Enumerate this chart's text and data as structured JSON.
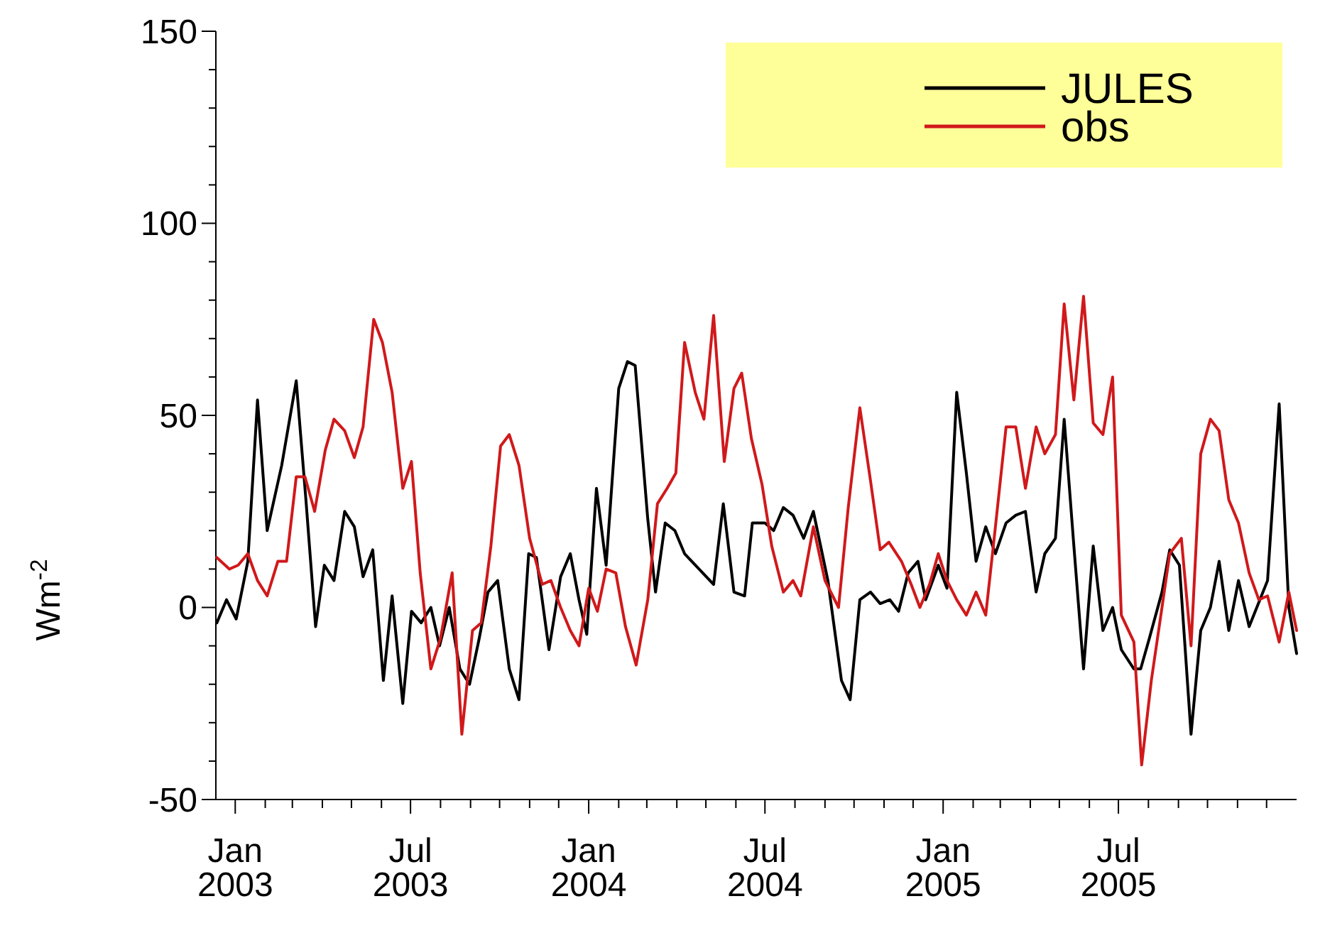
{
  "chart_data": {
    "type": "line",
    "ylabel": "Wm$^{-2}$",
    "legend": "top right",
    "marker": "none",
    "line_style": "solid",
    "xlim": [
      "2002-12-12",
      "2006-01-01"
    ],
    "xticks": [
      {
        "value": "2003-01",
        "label": "Jan\n2003"
      },
      {
        "value": "2003-02",
        "label": null
      },
      {
        "value": "2003-03",
        "label": null
      },
      {
        "value": "2003-04",
        "label": null
      },
      {
        "value": "2003-05",
        "label": null
      },
      {
        "value": "2003-06",
        "label": null
      },
      {
        "value": "2003-07",
        "label": "Jul\n2003"
      },
      {
        "value": "2003-08",
        "label": null
      },
      {
        "value": "2003-09",
        "label": null
      },
      {
        "value": "2003-10",
        "label": null
      },
      {
        "value": "2003-11",
        "label": null
      },
      {
        "value": "2003-12",
        "label": null
      },
      {
        "value": "2004-01",
        "label": "Jan\n2004"
      },
      {
        "value": "2004-02",
        "label": null
      },
      {
        "value": "2004-03",
        "label": null
      },
      {
        "value": "2004-04",
        "label": null
      },
      {
        "value": "2004-05",
        "label": null
      },
      {
        "value": "2004-06",
        "label": null
      },
      {
        "value": "2004-07",
        "label": "Jul\n2004"
      },
      {
        "value": "2004-08",
        "label": null
      },
      {
        "value": "2004-09",
        "label": null
      },
      {
        "value": "2004-10",
        "label": null
      },
      {
        "value": "2004-11",
        "label": null
      },
      {
        "value": "2004-12",
        "label": null
      },
      {
        "value": "2005-01",
        "label": "Jan\n2005"
      },
      {
        "value": "2005-02",
        "label": null
      },
      {
        "value": "2005-03",
        "label": null
      },
      {
        "value": "2005-04",
        "label": null
      },
      {
        "value": "2005-05",
        "label": null
      },
      {
        "value": "2005-06",
        "label": null
      },
      {
        "value": "2005-07",
        "label": "Jul\n2005"
      },
      {
        "value": "2005-08",
        "label": null
      },
      {
        "value": "2005-09",
        "label": null
      },
      {
        "value": "2005-10",
        "label": null
      },
      {
        "value": "2005-11",
        "label": null
      },
      {
        "value": "2005-12",
        "label": null
      }
    ],
    "ylim": [
      -50,
      150
    ],
    "yticks": [
      -50,
      {
        "value": -40,
        "label": null
      },
      {
        "value": -30,
        "label": null
      },
      {
        "value": -20,
        "label": null
      },
      {
        "value": -10,
        "label": null
      },
      0,
      {
        "value": 10,
        "label": null
      },
      {
        "value": 20,
        "label": null
      },
      {
        "value": 30,
        "label": null
      },
      {
        "value": 40,
        "label": null
      },
      50,
      {
        "value": 60,
        "label": null
      },
      {
        "value": 70,
        "label": null
      },
      {
        "value": 80,
        "label": null
      },
      {
        "value": 90,
        "label": null
      },
      100,
      {
        "value": 110,
        "label": null
      },
      {
        "value": 120,
        "label": null
      },
      {
        "value": 130,
        "label": null
      },
      {
        "value": 140,
        "label": null
      },
      150
    ],
    "series": [
      {
        "name": "JULES",
        "color": "#000000",
        "x": [
          "2002-12-13",
          "2002-12-23",
          "2003-01-02",
          "2003-01-14",
          "2003-01-24",
          "2003-02-03",
          "2003-02-18",
          "2003-03-05",
          "2003-03-15",
          "2003-03-25",
          "2003-04-03",
          "2003-04-13",
          "2003-04-24",
          "2003-05-04",
          "2003-05-13",
          "2003-05-23",
          "2003-06-03",
          "2003-06-12",
          "2003-06-23",
          "2003-07-02",
          "2003-07-12",
          "2003-07-22",
          "2003-07-31",
          "2003-08-10",
          "2003-08-21",
          "2003-08-31",
          "2003-09-10",
          "2003-09-19",
          "2003-09-29",
          "2003-10-11",
          "2003-10-21",
          "2003-10-31",
          "2003-11-08",
          "2003-11-21",
          "2003-12-03",
          "2003-12-13",
          "2003-12-22",
          "2003-12-30",
          "2004-01-09",
          "2004-01-19",
          "2004-02-01",
          "2004-02-10",
          "2004-02-18",
          "2004-03-02",
          "2004-03-10",
          "2004-03-20",
          "2004-03-30",
          "2004-04-09",
          "2004-05-09",
          "2004-05-19",
          "2004-05-30",
          "2004-06-10",
          "2004-06-18",
          "2004-07-01",
          "2004-07-10",
          "2004-07-20",
          "2004-07-30",
          "2004-08-10",
          "2004-08-20",
          "2004-09-04",
          "2004-09-18",
          "2004-09-27",
          "2004-10-07",
          "2004-10-18",
          "2004-10-28",
          "2004-11-07",
          "2004-11-16",
          "2004-11-26",
          "2004-12-06",
          "2004-12-14",
          "2004-12-27",
          "2005-01-05",
          "2005-01-15",
          "2005-01-25",
          "2005-02-04",
          "2005-02-14",
          "2005-02-24",
          "2005-03-07",
          "2005-03-17",
          "2005-03-27",
          "2005-04-07",
          "2005-04-16",
          "2005-04-27",
          "2005-05-06",
          "2005-05-16",
          "2005-05-26",
          "2005-06-05",
          "2005-06-15",
          "2005-06-25",
          "2005-07-04",
          "2005-07-17",
          "2005-07-24",
          "2005-08-02",
          "2005-08-15",
          "2005-08-23",
          "2005-09-02",
          "2005-09-14",
          "2005-09-24",
          "2005-10-04",
          "2005-10-13",
          "2005-10-23",
          "2005-11-02",
          "2005-11-13",
          "2005-12-02",
          "2005-12-14",
          "2005-12-24",
          "2006-01-01"
        ],
        "values": [
          -4,
          2,
          -3,
          12,
          54,
          20,
          37,
          59,
          28,
          -5,
          11,
          7,
          25,
          21,
          8,
          15,
          -19,
          3,
          -25,
          -1,
          -4,
          0,
          -10,
          0,
          -16,
          -20,
          -8,
          4,
          7,
          -16,
          -24,
          14,
          13,
          -11,
          8,
          14,
          2,
          -7,
          31,
          11,
          57,
          64,
          63,
          23,
          4,
          22,
          20,
          14,
          6,
          27,
          4,
          3,
          22,
          22,
          20,
          26,
          24,
          18,
          25,
          7,
          -19,
          -24,
          2,
          4,
          1,
          2,
          -1,
          9,
          12,
          2,
          11,
          5,
          56,
          35,
          12,
          21,
          14,
          22,
          24,
          25,
          4,
          14,
          18,
          49,
          16,
          -16,
          16,
          -6,
          0,
          -11,
          -16,
          -16,
          -8,
          4,
          15,
          11,
          -33,
          -6,
          0,
          12,
          -6,
          7,
          -5,
          7,
          53,
          0,
          -12
        ]
      },
      {
        "name": "obs",
        "color": "#d0191b",
        "x": [
          "2002-12-13",
          "2002-12-26",
          "2003-01-04",
          "2003-01-14",
          "2003-01-24",
          "2003-02-03",
          "2003-02-14",
          "2003-02-23",
          "2003-03-05",
          "2003-03-14",
          "2003-03-24",
          "2003-04-04",
          "2003-04-13",
          "2003-04-24",
          "2003-05-04",
          "2003-05-13",
          "2003-05-24",
          "2003-06-02",
          "2003-06-12",
          "2003-06-23",
          "2003-07-02",
          "2003-07-11",
          "2003-07-22",
          "2003-08-01",
          "2003-08-13",
          "2003-08-23",
          "2003-09-03",
          "2003-09-12",
          "2003-09-22",
          "2003-10-02",
          "2003-10-11",
          "2003-10-21",
          "2003-11-01",
          "2003-11-14",
          "2003-11-23",
          "2003-12-03",
          "2003-12-13",
          "2003-12-22",
          "2004-01-01",
          "2004-01-10",
          "2004-01-19",
          "2004-01-29",
          "2004-02-08",
          "2004-02-19",
          "2004-03-02",
          "2004-03-12",
          "2004-03-22",
          "2004-03-31",
          "2004-04-09",
          "2004-04-20",
          "2004-04-29",
          "2004-05-09",
          "2004-05-20",
          "2004-05-30",
          "2004-06-07",
          "2004-06-17",
          "2004-06-28",
          "2004-07-08",
          "2004-07-20",
          "2004-07-30",
          "2004-08-07",
          "2004-08-20",
          "2004-09-01",
          "2004-09-15",
          "2004-09-25",
          "2004-10-07",
          "2004-10-18",
          "2004-10-28",
          "2004-11-06",
          "2004-11-19",
          "2004-11-29",
          "2004-12-08",
          "2004-12-18",
          "2004-12-27",
          "2005-01-05",
          "2005-01-15",
          "2005-01-25",
          "2005-02-04",
          "2005-02-14",
          "2005-02-24",
          "2005-03-07",
          "2005-03-17",
          "2005-03-27",
          "2005-04-07",
          "2005-04-16",
          "2005-04-27",
          "2005-05-06",
          "2005-05-16",
          "2005-05-26",
          "2005-06-05",
          "2005-06-15",
          "2005-06-25",
          "2005-07-04",
          "2005-07-17",
          "2005-07-25",
          "2005-08-04",
          "2005-08-15",
          "2005-08-23",
          "2005-09-04",
          "2005-09-14",
          "2005-09-24",
          "2005-10-04",
          "2005-10-13",
          "2005-10-23",
          "2005-11-02",
          "2005-11-13",
          "2005-11-23",
          "2005-12-02",
          "2005-12-14",
          "2005-12-24",
          "2006-01-01"
        ],
        "values": [
          13,
          10,
          11,
          14,
          7,
          3,
          12,
          12,
          34,
          34,
          25,
          41,
          49,
          46,
          39,
          47,
          75,
          69,
          56,
          31,
          38,
          9,
          -16,
          -8,
          9,
          -33,
          -6,
          -4,
          16,
          42,
          45,
          37,
          18,
          6,
          7,
          0,
          -6,
          -10,
          5,
          -1,
          10,
          9,
          -5,
          -15,
          2,
          27,
          31,
          35,
          69,
          56,
          49,
          76,
          38,
          57,
          61,
          44,
          32,
          16,
          4,
          7,
          3,
          21,
          7,
          0,
          26,
          52,
          33,
          15,
          17,
          12,
          6,
          0,
          6,
          14,
          7,
          2,
          -2,
          4,
          -2,
          21,
          47,
          47,
          31,
          47,
          40,
          45,
          79,
          54,
          81,
          48,
          45,
          60,
          -2,
          -9,
          -41,
          -19,
          0,
          14,
          18,
          -10,
          40,
          49,
          46,
          28,
          22,
          9,
          2,
          3,
          -9,
          4,
          -6
        ]
      }
    ]
  }
}
